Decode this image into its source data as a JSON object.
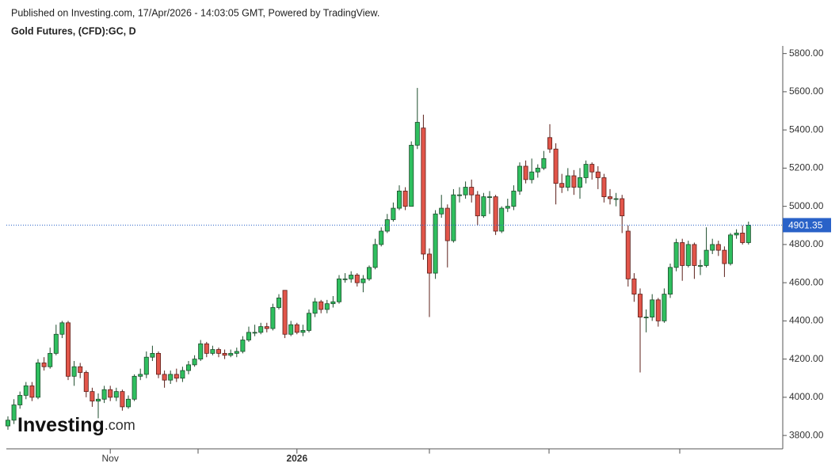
{
  "header": {
    "published": "Published on Investing.com, 17/Apr/2026 - 14:03:05 GMT, Powered by TradingView.",
    "instrument": "Gold Futures, (CFD):GC, D"
  },
  "logo": {
    "main": "Investing",
    "suffix": ".com"
  },
  "chart_data": {
    "type": "candlestick",
    "categories": [
      null,
      null,
      null,
      null,
      null,
      null,
      null,
      null,
      null,
      null,
      null,
      null,
      null,
      null,
      null,
      null,
      null,
      "Nov",
      null,
      null,
      null,
      null,
      null,
      null,
      null,
      null,
      null,
      null,
      null,
      null,
      null,
      null,
      null,
      null,
      null,
      null,
      null,
      null,
      null,
      null,
      null,
      null,
      null,
      null,
      null,
      null,
      null,
      null,
      "2026",
      null,
      null,
      null,
      null,
      null,
      null,
      null,
      null,
      null,
      null,
      null,
      null,
      null,
      null,
      null,
      null,
      null,
      null,
      null,
      null,
      null,
      null,
      null,
      null,
      null,
      null,
      null,
      null,
      null,
      null,
      null,
      null,
      null,
      null,
      null,
      null,
      null,
      null,
      null,
      null,
      null,
      null,
      null,
      null,
      null,
      null,
      null,
      null,
      null,
      null,
      null,
      null,
      null,
      null,
      null,
      null,
      null,
      null,
      null,
      null,
      null,
      null,
      null,
      null,
      null,
      null,
      null,
      null,
      null,
      null,
      null,
      null,
      null,
      null,
      null
    ],
    "open": [
      3850,
      3880,
      3960,
      4010,
      4060,
      4000,
      4180,
      4160,
      4230,
      4330,
      4390,
      4110,
      4160,
      4130,
      4030,
      3980,
      3990,
      4040,
      4000,
      4030,
      3950,
      3990,
      4110,
      4120,
      4210,
      4230,
      4120,
      4090,
      4120,
      4100,
      4140,
      4170,
      4200,
      4280,
      4230,
      4250,
      4230,
      4220,
      4230,
      4240,
      4300,
      4340,
      4340,
      4370,
      4360,
      4470,
      4560,
      4330,
      4380,
      4340,
      4350,
      4440,
      4500,
      4460,
      4490,
      4500,
      4620,
      4620,
      4640,
      4600,
      4620,
      4680,
      4800,
      4870,
      4930,
      4990,
      5080,
      5000,
      5320,
      5410,
      4750,
      4650,
      4960,
      4990,
      4820,
      5060,
      5060,
      5100,
      5060,
      4950,
      5050,
      5050,
      4870,
      4990,
      5000,
      5080,
      5210,
      5140,
      5180,
      5200,
      5360,
      5300,
      5120,
      5100,
      5160,
      5100,
      5150,
      5220,
      5180,
      5150,
      5050,
      5040,
      5040,
      4870,
      4620,
      4540,
      4420,
      4420,
      4510,
      4400,
      4540,
      4680,
      4810,
      4690,
      4800,
      4690,
      4690,
      4770,
      4800,
      4770,
      4700,
      4850,
      4860,
      4810
    ],
    "high": [
      3900,
      3990,
      4030,
      4080,
      4080,
      4200,
      4210,
      4260,
      4380,
      4400,
      4400,
      4190,
      4180,
      4140,
      4050,
      4020,
      4060,
      4060,
      4050,
      4040,
      4010,
      4120,
      4150,
      4240,
      4270,
      4240,
      4140,
      4140,
      4150,
      4160,
      4190,
      4220,
      4300,
      4290,
      4270,
      4260,
      4250,
      4250,
      4260,
      4320,
      4370,
      4380,
      4390,
      4390,
      4490,
      4540,
      4560,
      4400,
      4390,
      4380,
      4460,
      4520,
      4510,
      4510,
      4530,
      4640,
      4650,
      4660,
      4650,
      4640,
      4690,
      4830,
      4890,
      4960,
      5020,
      5110,
      5100,
      5340,
      5620,
      5480,
      4780,
      4980,
      5060,
      5010,
      5090,
      5100,
      5130,
      5140,
      5080,
      5070,
      5080,
      5060,
      5000,
      5040,
      5110,
      5230,
      5240,
      5250,
      5220,
      5290,
      5430,
      5330,
      5170,
      5200,
      5190,
      5200,
      5240,
      5230,
      5210,
      5170,
      5090,
      5070,
      5060,
      4900,
      4650,
      4570,
      4460,
      4540,
      4520,
      4570,
      4700,
      4830,
      4830,
      4820,
      4810,
      4720,
      4890,
      4830,
      4820,
      4790,
      4860,
      4880,
      4900,
      4920
    ],
    "low": [
      3830,
      3860,
      3940,
      3990,
      3980,
      3990,
      4140,
      4150,
      4220,
      4310,
      4090,
      4060,
      4100,
      4000,
      3950,
      3890,
      3970,
      3980,
      3980,
      3930,
      3940,
      3980,
      4090,
      4100,
      4190,
      4100,
      4050,
      4070,
      4080,
      4080,
      4120,
      4160,
      4190,
      4210,
      4220,
      4210,
      4200,
      4210,
      4210,
      4230,
      4290,
      4320,
      4330,
      4340,
      4350,
      4460,
      4310,
      4320,
      4330,
      4320,
      4340,
      4420,
      4440,
      4440,
      4470,
      4490,
      4600,
      4600,
      4580,
      4550,
      4610,
      4670,
      4790,
      4860,
      4920,
      4980,
      4980,
      5000,
      5300,
      4720,
      4420,
      4620,
      4940,
      4680,
      4810,
      5020,
      5040,
      5020,
      4900,
      4940,
      4960,
      4850,
      4860,
      4970,
      4980,
      5060,
      5120,
      5120,
      5150,
      5190,
      5280,
      5010,
      5070,
      5080,
      5060,
      5040,
      5120,
      5140,
      5090,
      5020,
      5010,
      5000,
      4860,
      4580,
      4500,
      4130,
      4340,
      4400,
      4370,
      4390,
      4520,
      4660,
      4610,
      4680,
      4620,
      4640,
      4680,
      4750,
      4740,
      4630,
      4690,
      4830,
      4800,
      4800
    ],
    "close": [
      3880,
      3960,
      4010,
      4060,
      4000,
      4180,
      4160,
      4230,
      4330,
      4390,
      4110,
      4160,
      4130,
      4030,
      3980,
      3990,
      4040,
      4000,
      4030,
      3950,
      3990,
      4110,
      4120,
      4210,
      4230,
      4120,
      4090,
      4120,
      4100,
      4140,
      4170,
      4200,
      4280,
      4230,
      4250,
      4230,
      4220,
      4230,
      4240,
      4300,
      4340,
      4340,
      4370,
      4360,
      4470,
      4520,
      4330,
      4380,
      4340,
      4350,
      4440,
      4500,
      4460,
      4490,
      4500,
      4620,
      4620,
      4640,
      4600,
      4620,
      4680,
      4800,
      4870,
      4930,
      4990,
      5080,
      5000,
      5320,
      5440,
      4750,
      4650,
      4960,
      4990,
      4820,
      5060,
      5060,
      5100,
      5060,
      4950,
      5050,
      5050,
      4870,
      4990,
      5000,
      5080,
      5210,
      5140,
      5180,
      5200,
      5250,
      5300,
      5120,
      5100,
      5160,
      5100,
      5150,
      5220,
      5180,
      5150,
      5050,
      5040,
      5040,
      4950,
      4620,
      4540,
      4420,
      4420,
      4510,
      4400,
      4540,
      4680,
      4810,
      4690,
      4800,
      4690,
      4690,
      4770,
      4800,
      4770,
      4700,
      4850,
      4860,
      4810,
      4901.35
    ],
    "up_color": "#2fbf5f",
    "down_color": "#e2554a",
    "last_price_color": "#2962c8",
    "ylim": [
      3730,
      5840
    ],
    "yticks": [
      {
        "value": 3800,
        "label": "3800.00"
      },
      {
        "value": 4000,
        "label": "4000.00"
      },
      {
        "value": 4200,
        "label": "4200.00"
      },
      {
        "value": 4400,
        "label": "4400.00"
      },
      {
        "value": 4600,
        "label": "4600.00"
      },
      {
        "value": 4800,
        "label": "4800.00"
      },
      {
        "value": 5000,
        "label": "5000.00"
      },
      {
        "value": 5200,
        "label": "5200.00"
      },
      {
        "value": 5400,
        "label": "5400.00"
      },
      {
        "value": 5600,
        "label": "5600.00"
      },
      {
        "value": 5800,
        "label": "5800.00"
      }
    ]
  }
}
